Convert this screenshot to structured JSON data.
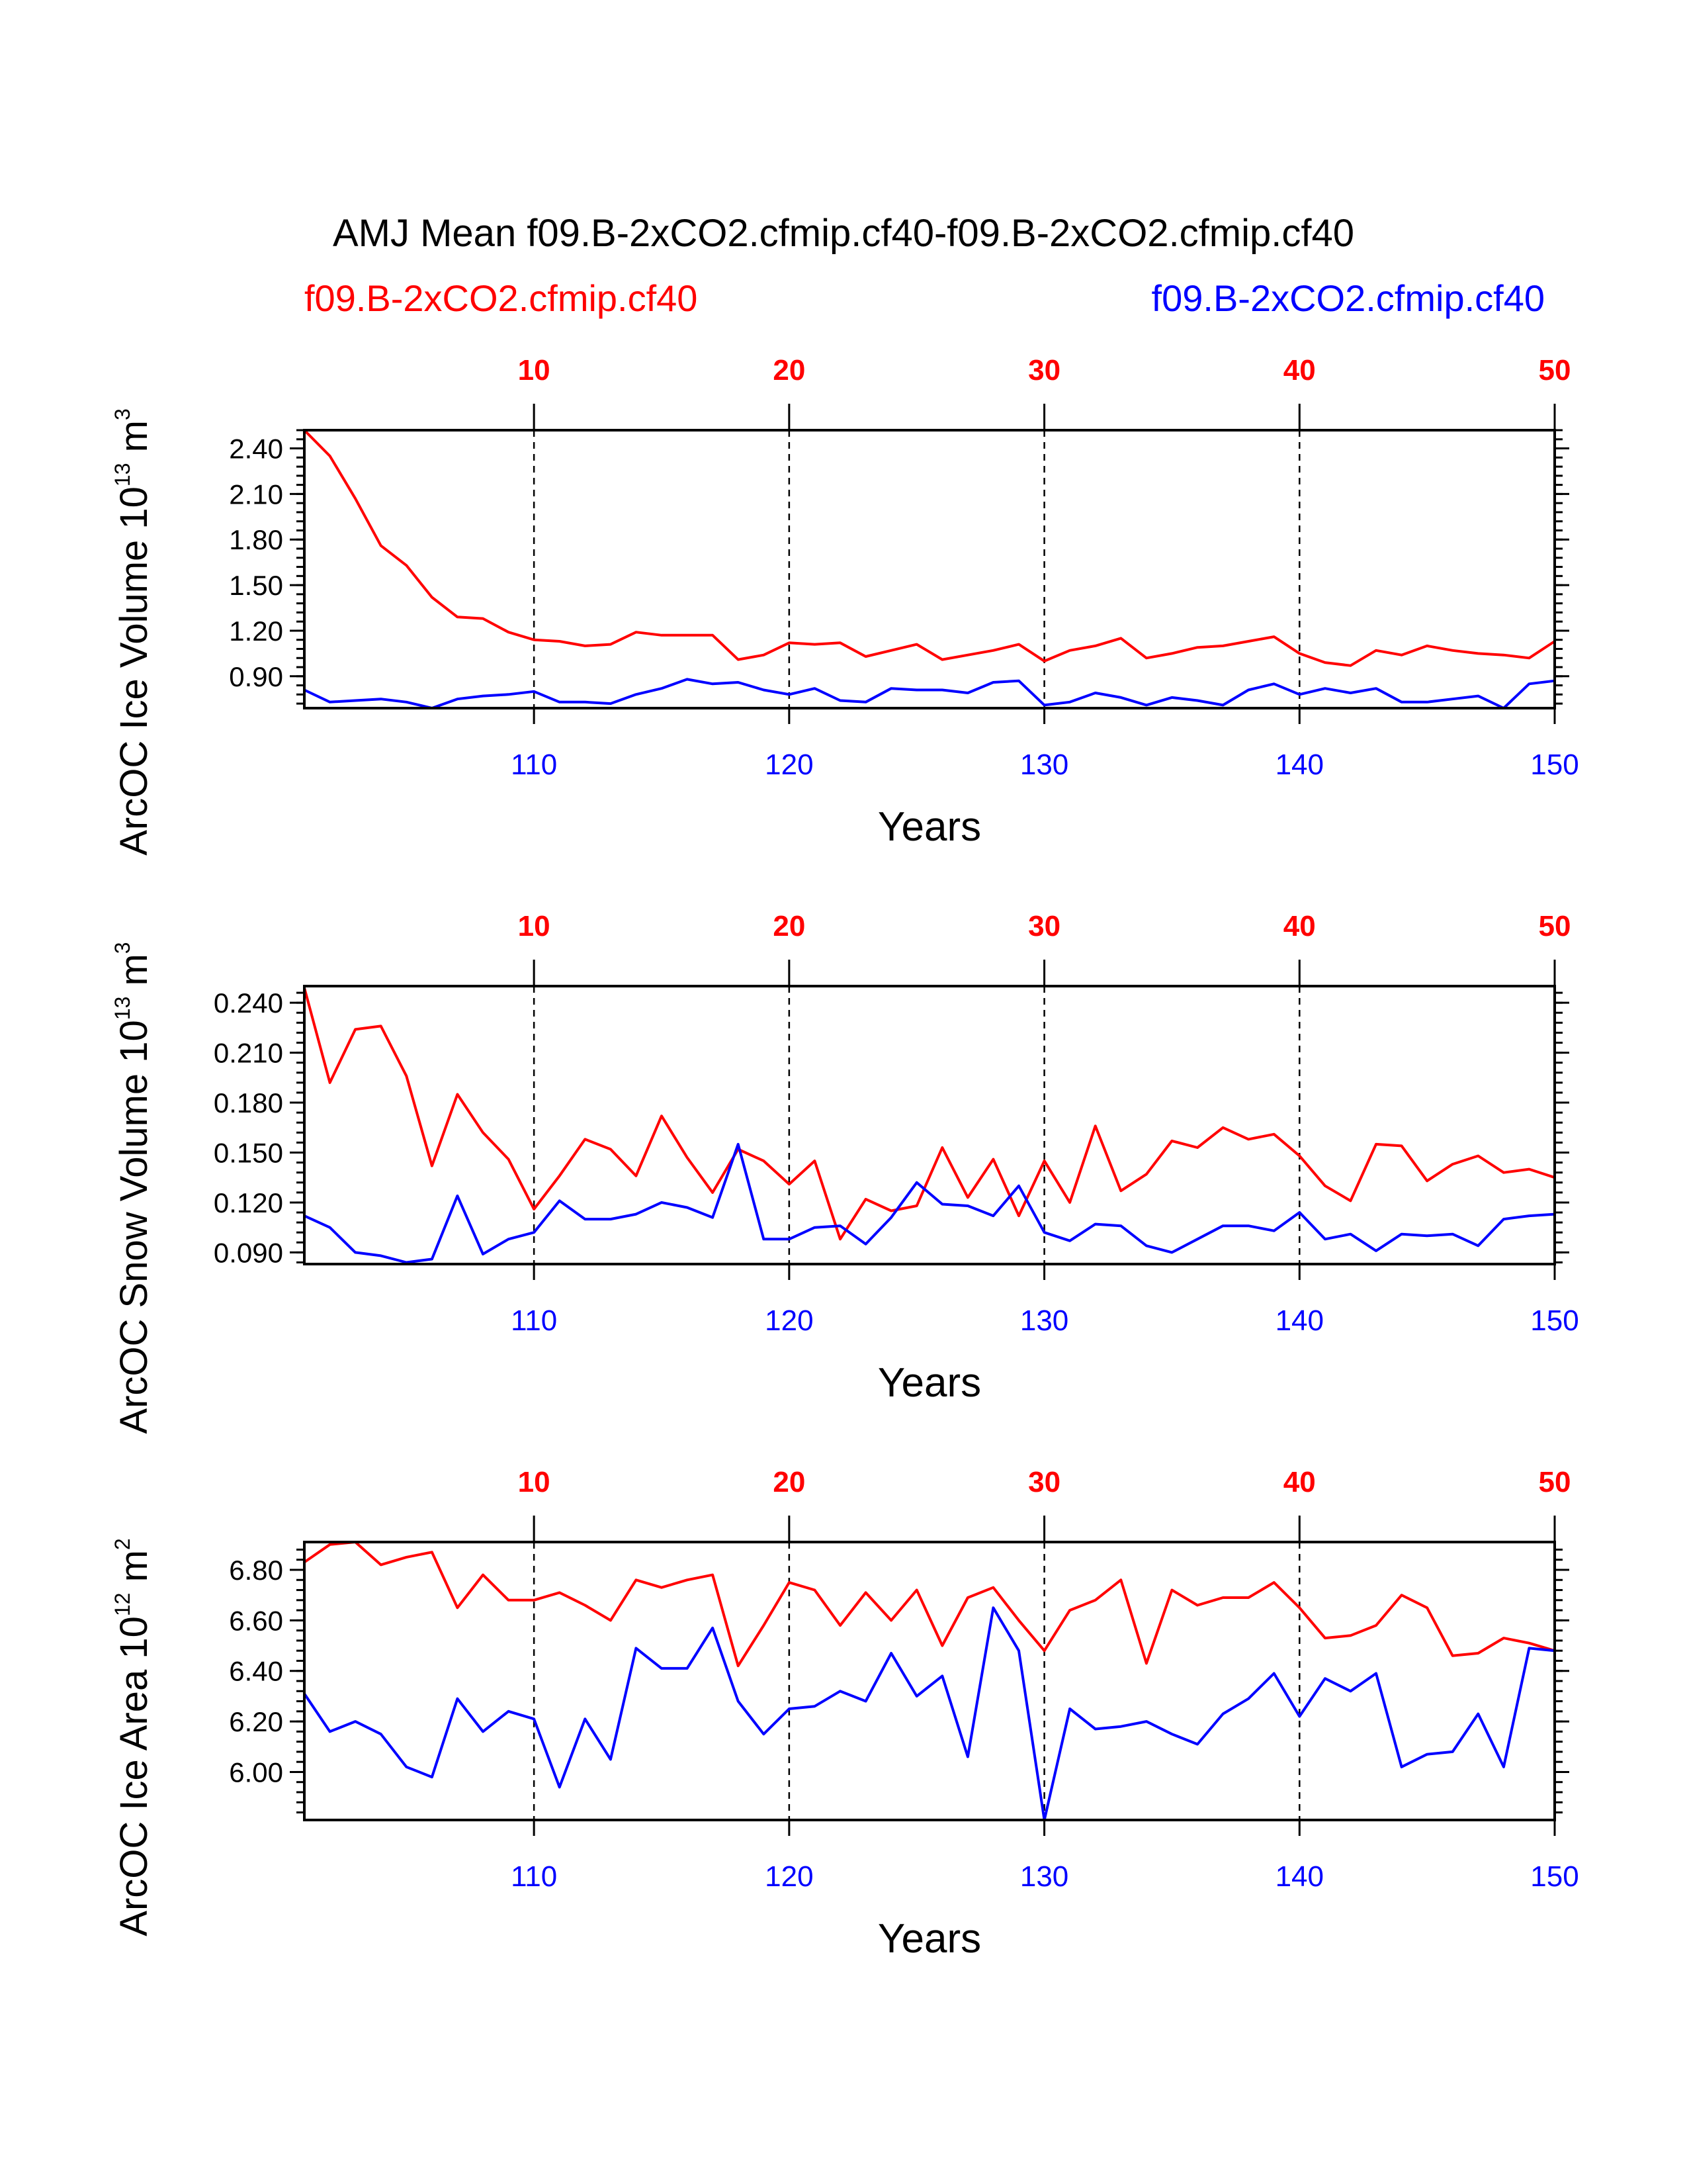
{
  "title": "AMJ Mean f09.B-2xCO2.cfmip.cf40-f09.B-2xCO2.cfmip.cf40",
  "case_red": "f09.B-2xCO2.cfmip.cf40",
  "case_blue": "f09.B-2xCO2.cfmip.cf40",
  "colors": {
    "red": "#ff0000",
    "blue": "#0000ff"
  },
  "chart_data": [
    {
      "type": "line",
      "ylabel": "ArcOC Ice Volume 10",
      "ylabel_exp": "13",
      "ylabel_unit": " m",
      "ylabel_unit_exp": "3",
      "xlabel": "Years",
      "xlim": [
        101,
        150
      ],
      "ylim": [
        0.69,
        2.52
      ],
      "yticks": [
        "2.40",
        "2.10",
        "1.80",
        "1.50",
        "1.20",
        "0.90"
      ],
      "yticks_minor_step": 0.06,
      "top_ticks": [
        "10",
        "20",
        "30",
        "40",
        "50"
      ],
      "bottom_ticks": [
        "110",
        "120",
        "130",
        "140",
        "150"
      ],
      "tick_years": [
        110,
        120,
        130,
        140,
        150
      ],
      "grid_years": [
        110,
        120,
        130,
        140
      ],
      "series": [
        {
          "name": "red",
          "color": "#ff0000",
          "x_start": 101,
          "values": [
            2.52,
            2.35,
            2.07,
            1.76,
            1.63,
            1.42,
            1.29,
            1.28,
            1.19,
            1.14,
            1.13,
            1.1,
            1.11,
            1.19,
            1.17,
            1.17,
            1.17,
            1.01,
            1.04,
            1.12,
            1.11,
            1.12,
            1.03,
            1.07,
            1.11,
            1.01,
            1.04,
            1.07,
            1.11,
            1.0,
            1.07,
            1.1,
            1.15,
            1.02,
            1.05,
            1.09,
            1.1,
            1.13,
            1.16,
            1.05,
            0.99,
            0.97,
            1.07,
            1.04,
            1.1,
            1.07,
            1.05,
            1.04,
            1.02,
            1.13
          ]
        },
        {
          "name": "blue",
          "color": "#0000ff",
          "x_start": 101,
          "values": [
            0.81,
            0.73,
            0.74,
            0.75,
            0.73,
            0.69,
            0.75,
            0.77,
            0.78,
            0.8,
            0.73,
            0.73,
            0.72,
            0.78,
            0.82,
            0.88,
            0.85,
            0.86,
            0.81,
            0.78,
            0.82,
            0.74,
            0.73,
            0.82,
            0.81,
            0.81,
            0.79,
            0.86,
            0.87,
            0.71,
            0.73,
            0.79,
            0.76,
            0.71,
            0.76,
            0.74,
            0.71,
            0.81,
            0.85,
            0.78,
            0.82,
            0.79,
            0.82,
            0.73,
            0.73,
            0.75,
            0.77,
            0.69,
            0.85,
            0.87
          ]
        }
      ]
    },
    {
      "type": "line",
      "ylabel": "ArcOC Snow Volume 10",
      "ylabel_exp": "13",
      "ylabel_unit": " m",
      "ylabel_unit_exp": "3",
      "xlabel": "Years",
      "xlim": [
        101,
        150
      ],
      "ylim": [
        0.083,
        0.25
      ],
      "yticks": [
        "0.240",
        "0.210",
        "0.180",
        "0.150",
        "0.120",
        "0.090"
      ],
      "yticks_minor_step": 0.006,
      "top_ticks": [
        "10",
        "20",
        "30",
        "40",
        "50"
      ],
      "bottom_ticks": [
        "110",
        "120",
        "130",
        "140",
        "150"
      ],
      "tick_years": [
        110,
        120,
        130,
        140,
        150
      ],
      "grid_years": [
        110,
        120,
        130,
        140
      ],
      "series": [
        {
          "name": "red",
          "color": "#ff0000",
          "x_start": 101,
          "values": [
            0.249,
            0.192,
            0.224,
            0.226,
            0.196,
            0.142,
            0.185,
            0.162,
            0.146,
            0.116,
            0.136,
            0.158,
            0.152,
            0.136,
            0.172,
            0.147,
            0.126,
            0.152,
            0.145,
            0.131,
            0.145,
            0.098,
            0.122,
            0.115,
            0.118,
            0.153,
            0.123,
            0.146,
            0.112,
            0.145,
            0.12,
            0.166,
            0.127,
            0.137,
            0.157,
            0.153,
            0.165,
            0.158,
            0.161,
            0.148,
            0.13,
            0.121,
            0.155,
            0.154,
            0.133,
            0.143,
            0.148,
            0.138,
            0.14,
            0.135
          ]
        },
        {
          "name": "blue",
          "color": "#0000ff",
          "x_start": 101,
          "values": [
            0.112,
            0.105,
            0.09,
            0.088,
            0.084,
            0.086,
            0.124,
            0.089,
            0.098,
            0.102,
            0.121,
            0.11,
            0.11,
            0.113,
            0.12,
            0.117,
            0.111,
            0.155,
            0.098,
            0.098,
            0.105,
            0.106,
            0.095,
            0.111,
            0.132,
            0.119,
            0.118,
            0.112,
            0.13,
            0.102,
            0.097,
            0.107,
            0.106,
            0.094,
            0.09,
            0.098,
            0.106,
            0.106,
            0.103,
            0.114,
            0.098,
            0.101,
            0.091,
            0.101,
            0.1,
            0.101,
            0.094,
            0.11,
            0.112,
            0.113
          ]
        }
      ]
    },
    {
      "type": "line",
      "ylabel": "ArcOC Ice Area 10",
      "ylabel_exp": "12",
      "ylabel_unit": " m",
      "ylabel_unit_exp": "2",
      "xlabel": "Years",
      "xlim": [
        101,
        150
      ],
      "ylim": [
        5.81,
        6.91
      ],
      "yticks": [
        "6.80",
        "6.60",
        "6.40",
        "6.20",
        "6.00"
      ],
      "yticks_minor_step": 0.04,
      "top_ticks": [
        "10",
        "20",
        "30",
        "40",
        "50"
      ],
      "bottom_ticks": [
        "110",
        "120",
        "130",
        "140",
        "150"
      ],
      "tick_years": [
        110,
        120,
        130,
        140,
        150
      ],
      "grid_years": [
        110,
        120,
        130,
        140
      ],
      "series": [
        {
          "name": "red",
          "color": "#ff0000",
          "x_start": 101,
          "values": [
            6.83,
            6.9,
            6.91,
            6.82,
            6.85,
            6.87,
            6.65,
            6.78,
            6.68,
            6.68,
            6.71,
            6.66,
            6.6,
            6.76,
            6.73,
            6.76,
            6.78,
            6.42,
            6.58,
            6.75,
            6.72,
            6.58,
            6.71,
            6.6,
            6.72,
            6.5,
            6.69,
            6.73,
            6.6,
            6.48,
            6.64,
            6.68,
            6.76,
            6.43,
            6.72,
            6.66,
            6.69,
            6.69,
            6.75,
            6.65,
            6.53,
            6.54,
            6.58,
            6.7,
            6.65,
            6.46,
            6.47,
            6.53,
            6.51,
            6.48
          ]
        },
        {
          "name": "blue",
          "color": "#0000ff",
          "x_start": 101,
          "values": [
            6.31,
            6.16,
            6.2,
            6.15,
            6.02,
            5.98,
            6.29,
            6.16,
            6.24,
            6.21,
            5.94,
            6.21,
            6.05,
            6.49,
            6.41,
            6.41,
            6.57,
            6.28,
            6.15,
            6.25,
            6.26,
            6.32,
            6.28,
            6.47,
            6.3,
            6.38,
            6.06,
            6.65,
            6.48,
            5.81,
            6.25,
            6.17,
            6.18,
            6.2,
            6.15,
            6.11,
            6.23,
            6.29,
            6.39,
            6.22,
            6.37,
            6.32,
            6.39,
            6.02,
            6.07,
            6.08,
            6.23,
            6.02,
            6.49,
            6.48
          ]
        }
      ]
    }
  ]
}
